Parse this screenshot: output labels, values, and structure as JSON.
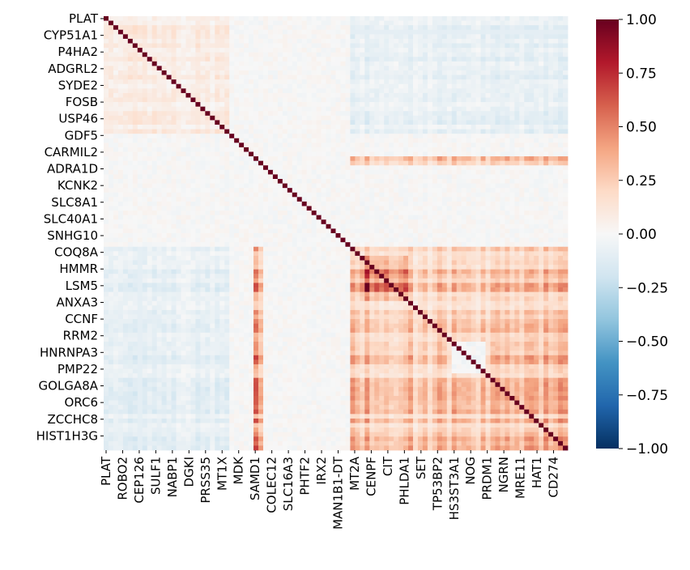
{
  "chart_data": {
    "type": "heatmap",
    "title": "",
    "xlabel": "",
    "ylabel": "",
    "y_tick_labels": [
      "PLAT",
      "CYP51A1",
      "P4HA2",
      "ADGRL2",
      "SYDE2",
      "FOSB",
      "USP46",
      "GDF5",
      "CARMIL2",
      "ADRA1D",
      "KCNK2",
      "SLC8A1",
      "SLC40A1",
      "SNHG10",
      "COQ8A",
      "HMMR",
      "LSM5",
      "ANXA3",
      "CCNF",
      "RRM2",
      "HNRNPA3",
      "PMP22",
      "GOLGA8A",
      "ORC6",
      "ZCCHC8",
      "HIST1H3G"
    ],
    "x_tick_labels": [
      "PLAT",
      "ROBO2",
      "CEP126",
      "SULF1",
      "NABP1",
      "DGKI",
      "PRSS35",
      "MT1X",
      "MDK",
      "SAMD1",
      "COLEC12",
      "SLC16A3",
      "PHTF2",
      "IRX2",
      "MAN1B1-DT",
      "MT2A",
      "CENPF",
      "CIT",
      "PHLDA1",
      "SET",
      "TP53BP2",
      "HS3ST3A1",
      "NOG",
      "PRDM1",
      "NGRN",
      "MRE11",
      "HAT1",
      "CD274"
    ],
    "colorbar": {
      "vmin": -1.0,
      "vmax": 1.0,
      "cmap": "RdBu_r",
      "tick_values": [
        1.0,
        0.75,
        0.5,
        0.25,
        0.0,
        -0.25,
        -0.5,
        -0.75,
        -1.0
      ],
      "tick_labels": [
        "1.00",
        "0.75",
        "0.50",
        "0.25",
        "0.00",
        "−0.25",
        "−0.50",
        "−0.75",
        "−1.00"
      ]
    },
    "diagonal_value": 1.0,
    "blocks": [
      {
        "rows": [
          0,
          0.27
        ],
        "cols": [
          0,
          0.27
        ],
        "value": 0.08
      },
      {
        "rows": [
          0,
          0.27
        ],
        "cols": [
          0.535,
          1.0
        ],
        "value": -0.08
      },
      {
        "rows": [
          0.535,
          1.0
        ],
        "cols": [
          0,
          0.27
        ],
        "value": -0.08
      },
      {
        "rows": [
          0.535,
          1.0
        ],
        "cols": [
          0.535,
          1.0
        ],
        "value": 0.25
      },
      {
        "rows": [
          0.55,
          0.66
        ],
        "cols": [
          0.55,
          0.66
        ],
        "value": 0.5
      },
      {
        "rows": [
          0.535,
          1.0
        ],
        "cols": [
          0.325,
          0.345
        ],
        "value": 0.35
      },
      {
        "rows": [
          0.325,
          0.345
        ],
        "cols": [
          0.535,
          1.0
        ],
        "value": 0.3
      },
      {
        "rows": [
          0.745,
          0.82
        ],
        "cols": [
          0.745,
          0.82
        ],
        "value": -0.02
      }
    ]
  }
}
